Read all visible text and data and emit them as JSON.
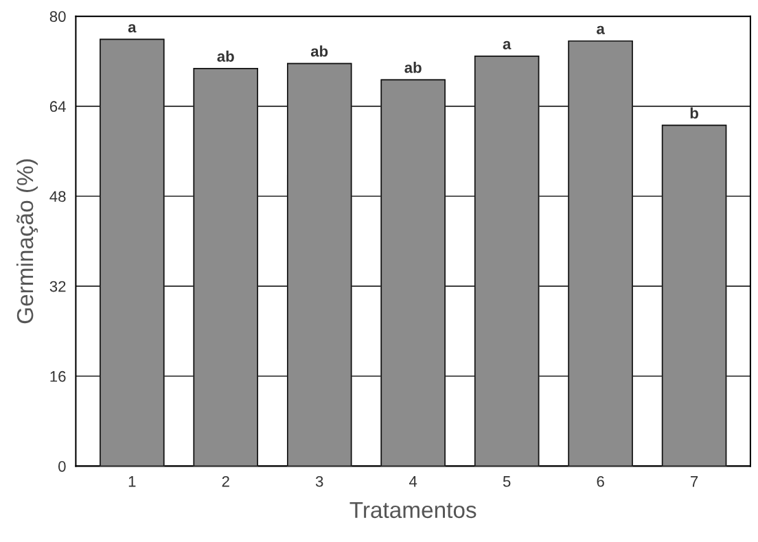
{
  "chart_data": {
    "type": "bar",
    "xlabel": "Tratamentos",
    "ylabel": "Germinação (%)",
    "categories": [
      "1",
      "2",
      "3",
      "4",
      "5",
      "6",
      "7"
    ],
    "values": [
      75.9,
      70.7,
      71.6,
      68.7,
      72.9,
      75.6,
      60.6
    ],
    "color": "#8c8c8c",
    "ylim": [
      0,
      80
    ],
    "yticks": [
      0,
      16,
      32,
      48,
      64,
      80
    ],
    "grid": "y",
    "annotations": [
      {
        "text": "a",
        "x": "1",
        "y": 75.9
      },
      {
        "text": "ab",
        "x": "2",
        "y": 70.7
      },
      {
        "text": "ab",
        "x": "3",
        "y": 71.6
      },
      {
        "text": "ab",
        "x": "4",
        "y": 68.7
      },
      {
        "text": "a",
        "x": "5",
        "y": 72.9
      },
      {
        "text": "a",
        "x": "6",
        "y": 75.6
      },
      {
        "text": "b",
        "x": "7",
        "y": 60.6
      }
    ]
  }
}
